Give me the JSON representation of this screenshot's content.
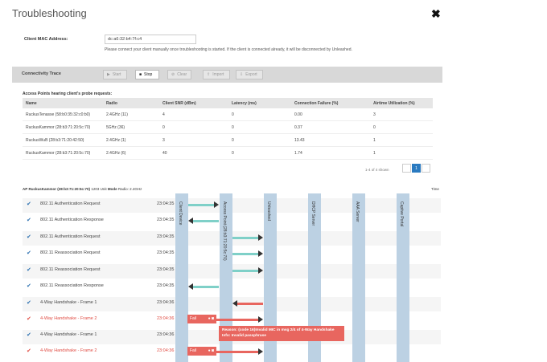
{
  "dialog": {
    "title": "Troubleshooting",
    "close_glyph": "✖"
  },
  "mac": {
    "label": "Client MAC Address:",
    "value": "dc:a6:32:b4:7f:c4",
    "help": "Please connect your client manually once troubleshooting is started. If the client is connected already, it will be disconnected by Unleashed."
  },
  "trace": {
    "label": "Connectivity Trace",
    "buttons": [
      {
        "label": "Start",
        "icon": "play-icon",
        "glyph": "▶",
        "active": false
      },
      {
        "label": "Stop",
        "icon": "stop-icon",
        "glyph": "■",
        "active": true
      },
      {
        "label": "Clear",
        "icon": "clear-icon",
        "glyph": "⊘",
        "active": false
      },
      {
        "label": "Import",
        "icon": "import-icon",
        "glyph": "⇧",
        "active": false
      },
      {
        "label": "Export",
        "icon": "export-icon",
        "glyph": "⇩",
        "active": false
      }
    ]
  },
  "ap_table": {
    "heading": "Access Points hearing client's probe requests:",
    "columns": [
      "Name",
      "Radio",
      "Client SNR (dBm)",
      "Latency (ms)",
      "Connection Failure (%)",
      "Airtime Utilization (%)"
    ],
    "rows": [
      [
        "RuckusTenasse (58:b0:35:32:c0:b0)",
        "2.4GHz (11)",
        "4",
        "0",
        "0.00",
        "3"
      ],
      [
        "RuckusKammor (28:b3:71:20:5c:70)",
        "5GHz (36)",
        "0",
        "0",
        "0.37",
        "0"
      ],
      [
        "RuckusWuB (28:b3:71:20:42:50)",
        "2.4GHz (1)",
        "3",
        "0",
        "13.43",
        "1"
      ],
      [
        "RuckusKammor (28:b3:71:20:5c:70)",
        "2.4GHz (6)",
        "40",
        "0",
        "1.74",
        "1"
      ]
    ],
    "pager_text": "1-4 of 4 shown",
    "current_page": "1"
  },
  "ap_info": {
    "prefix": "AP",
    "ap_name": "RuckusKammor (28:b3:71:20:5c:70)",
    "middle": "1203 Unit",
    "mode_label": "Mode",
    "mode_value": "Radio: 2.4GHz",
    "time_header": "Time"
  },
  "lanes": [
    {
      "label": "Client Device",
      "name": "lane-client-device"
    },
    {
      "label": "Access Point (28:b3:71:20:5c:70)",
      "name": "lane-access-point"
    },
    {
      "label": "Unleashed",
      "name": "lane-unleashed"
    },
    {
      "label": "DHCP Server",
      "name": "lane-dhcp-server"
    },
    {
      "label": "AAA Server",
      "name": "lane-aaa-server"
    },
    {
      "label": "Captive Portal",
      "name": "lane-captive-portal"
    }
  ],
  "events": [
    {
      "label": "802.11 Authentication Request",
      "time": "23:04:35",
      "status": "ok"
    },
    {
      "label": "802.11 Authentication Response",
      "time": "23:04:35",
      "status": "ok"
    },
    {
      "label": "802.11 Authentication Request",
      "time": "23:04:35",
      "status": "ok"
    },
    {
      "label": "802.11 Reassociation Request",
      "time": "23:04:35",
      "status": "ok"
    },
    {
      "label": "802.11 Reassociation Request",
      "time": "23:04:35",
      "status": "ok"
    },
    {
      "label": "802.11 Reassociation Response",
      "time": "23:04:35",
      "status": "ok"
    },
    {
      "label": "4-Way Handshake - Frame 1",
      "time": "23:04:36",
      "status": "ok"
    },
    {
      "label": "4-Way Handshake - Frame 2",
      "time": "23:04:36",
      "status": "fail"
    },
    {
      "label": "4-Way Handshake - Frame 1",
      "time": "23:04:36",
      "status": "ok"
    },
    {
      "label": "4-Way Handshake - Frame 2",
      "time": "23:04:36",
      "status": "fail"
    }
  ],
  "fail_label": "Fail",
  "reason": {
    "line1": "Reason: (code 16)Invalid MIC in msg 2/4 of 4-Way Handshake",
    "line2": "Info: Invalid passphrase"
  },
  "colors": {
    "ok_arrow": "#7fd0c8",
    "fail": "#e8665f",
    "lane": "#bcd1e3",
    "check": "#2a6fb0",
    "page_active": "#2a7ac0"
  }
}
